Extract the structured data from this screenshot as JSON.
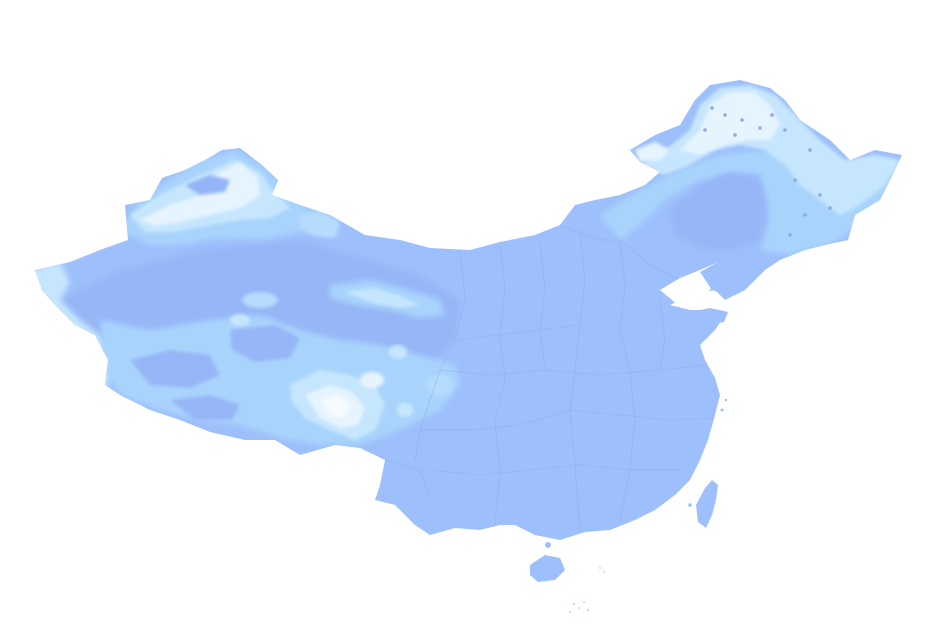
{
  "map": {
    "kind": "choropleth-contour",
    "region": "China",
    "labels_printed": false,
    "colors": {
      "background": "#ffffff",
      "band_base": "#9dbffb",
      "band_deep": "#93b4f6",
      "band_mid": "#a8d4fc",
      "band_light": "#c6e6fe",
      "band_pale": "#e6f4ff",
      "band_white": "#f7fbff",
      "province_border": "#8fa9e6"
    },
    "features": [
      "mainland",
      "hainan-island",
      "taiwan-island",
      "bohai-sea",
      "province-boundaries",
      "northeast-contour-bands",
      "xinjiang-contour-bands",
      "tibet-contour-bands",
      "south-china-sea-islands"
    ]
  }
}
